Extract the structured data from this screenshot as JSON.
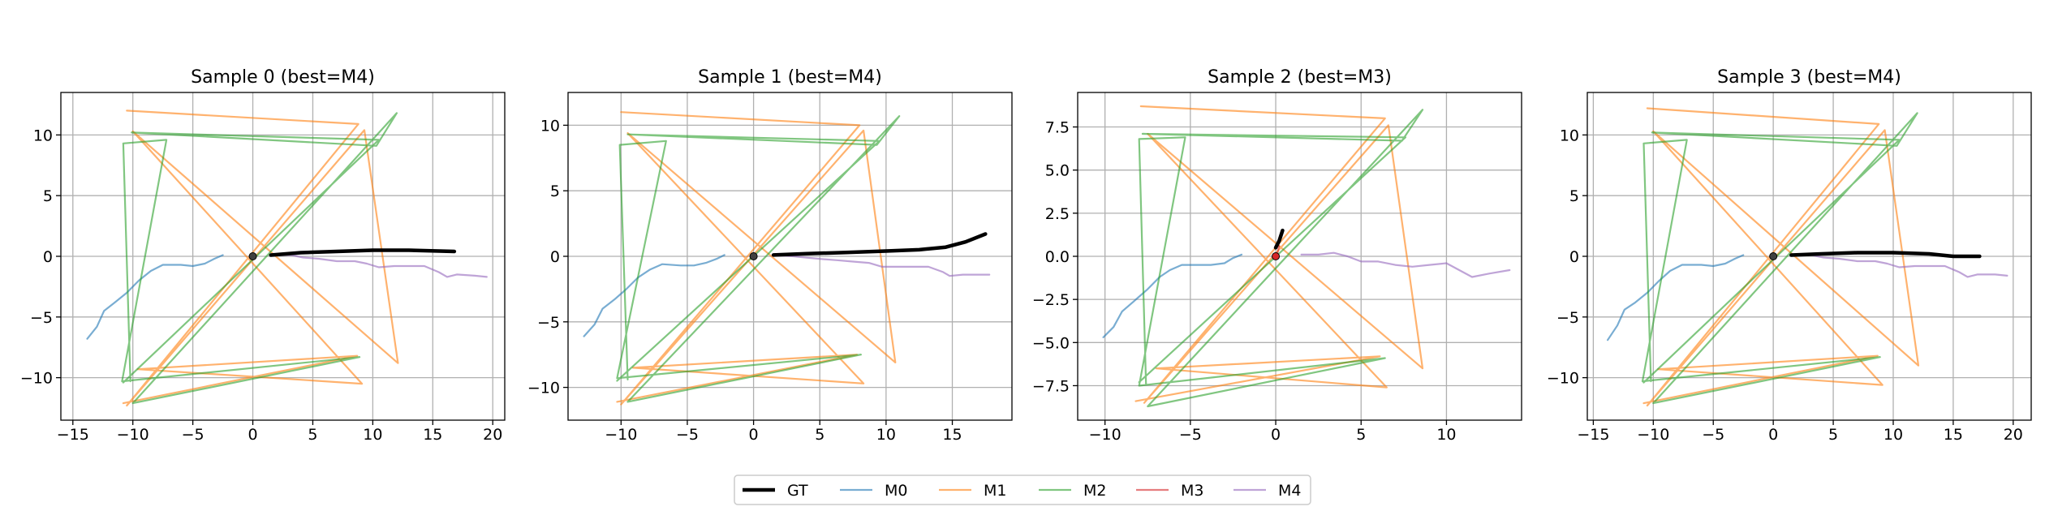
{
  "colors": {
    "GT": "#000000",
    "M0": "#1f77b4",
    "M1": "#ff7f0e",
    "M2": "#2ca02c",
    "M3": "#d62728",
    "M4": "#9467bd",
    "grid": "#b0b0b0"
  },
  "legend": {
    "placement": "bottom-center",
    "entries": [
      "GT",
      "M0",
      "M1",
      "M2",
      "M3",
      "M4"
    ]
  },
  "chart_data": [
    {
      "type": "line",
      "title": "Sample 0 (best=M4)",
      "xlim": [
        -16,
        21
      ],
      "ylim": [
        -13.5,
        13.5
      ],
      "xticks": [
        -15,
        -10,
        -5,
        0,
        5,
        10,
        15,
        20
      ],
      "yticks": [
        -10,
        -5,
        0,
        5,
        10
      ],
      "grid": true,
      "series": [
        {
          "name": "GT",
          "points": [
            [
              1.5,
              0.1
            ],
            [
              4,
              0.3
            ],
            [
              7,
              0.4
            ],
            [
              10,
              0.5
            ],
            [
              13,
              0.5
            ],
            [
              16.8,
              0.4
            ]
          ]
        },
        {
          "name": "M0",
          "points": [
            [
              -13.8,
              -6.8
            ],
            [
              -13,
              -5.8
            ],
            [
              -12.4,
              -4.5
            ],
            [
              -11.5,
              -3.8
            ],
            [
              -10.5,
              -3
            ],
            [
              -9.5,
              -2
            ],
            [
              -8.5,
              -1.2
            ],
            [
              -7.5,
              -0.7
            ],
            [
              -6,
              -0.7
            ],
            [
              -5,
              -0.8
            ],
            [
              -4,
              -0.6
            ],
            [
              -3.2,
              -0.2
            ],
            [
              -2.5,
              0.1
            ]
          ]
        },
        {
          "name": "M1",
          "points": [
            [
              -10.5,
              12
            ],
            [
              8.8,
              10.9
            ],
            [
              -10.5,
              -12.3
            ],
            [
              9.3,
              10.4
            ],
            [
              12.1,
              -8.8
            ],
            [
              -10,
              10.3
            ],
            [
              9.1,
              -10.5
            ],
            [
              -9.6,
              -9.3
            ],
            [
              8.7,
              -8.2
            ],
            [
              -10.8,
              -12.1
            ]
          ]
        },
        {
          "name": "M2",
          "points": [
            [
              -10.8,
              -10.4
            ],
            [
              10.5,
              9.6
            ],
            [
              -10.1,
              10.2
            ],
            [
              10.3,
              9.1
            ],
            [
              12,
              11.8
            ],
            [
              -10,
              -12.1
            ],
            [
              8.9,
              -8.3
            ],
            [
              -10.9,
              -10.3
            ],
            [
              -7.2,
              9.6
            ],
            [
              -10.8,
              9.3
            ],
            [
              -10.2,
              -10.3
            ]
          ]
        },
        {
          "name": "M3",
          "points": []
        },
        {
          "name": "M4",
          "points": [
            [
              1.5,
              0.1
            ],
            [
              3.2,
              0.1
            ],
            [
              4.2,
              -0.1
            ],
            [
              5.5,
              -0.2
            ],
            [
              7,
              -0.4
            ],
            [
              8.5,
              -0.4
            ],
            [
              9.5,
              -0.6
            ],
            [
              10.5,
              -0.9
            ],
            [
              11.8,
              -0.8
            ],
            [
              13,
              -0.8
            ],
            [
              14.3,
              -0.8
            ],
            [
              15.5,
              -1.3
            ],
            [
              16.2,
              -1.7
            ],
            [
              17,
              -1.5
            ],
            [
              18.5,
              -1.6
            ],
            [
              19.5,
              -1.7
            ]
          ]
        }
      ]
    },
    {
      "type": "line",
      "title": "Sample 1 (best=M4)",
      "xlim": [
        -14,
        19.5
      ],
      "ylim": [
        -12.5,
        12.5
      ],
      "xticks": [
        -10,
        -5,
        0,
        5,
        10,
        15
      ],
      "yticks": [
        -10,
        -5,
        0,
        5,
        10
      ],
      "grid": true,
      "series": [
        {
          "name": "GT",
          "points": [
            [
              1.5,
              0.1
            ],
            [
              4,
              0.2
            ],
            [
              7,
              0.3
            ],
            [
              10,
              0.4
            ],
            [
              12.5,
              0.5
            ],
            [
              14.5,
              0.7
            ],
            [
              16,
              1.1
            ],
            [
              17.5,
              1.7
            ]
          ]
        },
        {
          "name": "M0",
          "points": [
            [
              -12.8,
              -6.1
            ],
            [
              -12,
              -5.2
            ],
            [
              -11.4,
              -4
            ],
            [
              -10.5,
              -3.3
            ],
            [
              -9.6,
              -2.5
            ],
            [
              -8.7,
              -1.6
            ],
            [
              -7.8,
              -1
            ],
            [
              -6.9,
              -0.6
            ],
            [
              -5.5,
              -0.7
            ],
            [
              -4.5,
              -0.7
            ],
            [
              -3.6,
              -0.5
            ],
            [
              -2.8,
              -0.2
            ],
            [
              -2.2,
              0.1
            ]
          ]
        },
        {
          "name": "M1",
          "points": [
            [
              -10,
              11
            ],
            [
              8,
              10
            ],
            [
              -10,
              -11.3
            ],
            [
              8.3,
              9.6
            ],
            [
              10.7,
              -8.1
            ],
            [
              -9.5,
              9.4
            ],
            [
              8.3,
              -9.7
            ],
            [
              -9.1,
              -8.5
            ],
            [
              7.8,
              -7.5
            ],
            [
              -10.3,
              -11.1
            ]
          ]
        },
        {
          "name": "M2",
          "points": [
            [
              -10.3,
              -9.5
            ],
            [
              9.5,
              8.8
            ],
            [
              -9.5,
              9.3
            ],
            [
              9.3,
              8.5
            ],
            [
              11,
              10.7
            ],
            [
              -9.5,
              -11.1
            ],
            [
              8.1,
              -7.5
            ],
            [
              -10.3,
              -9.3
            ],
            [
              -6.6,
              8.8
            ],
            [
              -10.1,
              8.5
            ],
            [
              -9.5,
              -9.4
            ]
          ]
        },
        {
          "name": "M3",
          "points": []
        },
        {
          "name": "M4",
          "points": [
            [
              1.5,
              0.1
            ],
            [
              3,
              0
            ],
            [
              4,
              -0.1
            ],
            [
              5,
              -0.2
            ],
            [
              6.3,
              -0.3
            ],
            [
              7.5,
              -0.4
            ],
            [
              8.7,
              -0.5
            ],
            [
              9.7,
              -0.8
            ],
            [
              10.8,
              -0.8
            ],
            [
              12,
              -0.8
            ],
            [
              13.2,
              -0.8
            ],
            [
              14.3,
              -1.2
            ],
            [
              14.8,
              -1.5
            ],
            [
              15.8,
              -1.4
            ],
            [
              17,
              -1.4
            ],
            [
              17.8,
              -1.4
            ]
          ]
        }
      ]
    },
    {
      "type": "line",
      "title": "Sample 2 (best=M3)",
      "xlim": [
        -11.6,
        14.4
      ],
      "ylim": [
        -9.5,
        9.5
      ],
      "xticks": [
        -10,
        -5,
        0,
        5,
        10
      ],
      "yticks": [
        -7.5,
        -5.0,
        -2.5,
        0.0,
        2.5,
        5.0,
        7.5
      ],
      "grid": true,
      "series": [
        {
          "name": "GT",
          "points": [
            [
              0,
              0.5
            ],
            [
              0.2,
              0.9
            ],
            [
              0.3,
              1.2
            ],
            [
              0.4,
              1.5
            ]
          ]
        },
        {
          "name": "M0",
          "points": [
            [
              -10.1,
              -4.7
            ],
            [
              -9.5,
              -4.1
            ],
            [
              -9,
              -3.2
            ],
            [
              -8.3,
              -2.6
            ],
            [
              -7.5,
              -1.9
            ],
            [
              -6.8,
              -1.2
            ],
            [
              -6.2,
              -0.8
            ],
            [
              -5.5,
              -0.5
            ],
            [
              -4.5,
              -0.5
            ],
            [
              -3.8,
              -0.5
            ],
            [
              -3,
              -0.4
            ],
            [
              -2.5,
              -0.1
            ],
            [
              -2,
              0.1
            ]
          ]
        },
        {
          "name": "M1",
          "points": [
            [
              -7.9,
              8.7
            ],
            [
              6.4,
              8
            ],
            [
              -7.7,
              -8.5
            ],
            [
              6.6,
              7.6
            ],
            [
              8.6,
              -6.5
            ],
            [
              -7.5,
              7.1
            ],
            [
              6.5,
              -7.6
            ],
            [
              -7,
              -6.5
            ],
            [
              6.1,
              -5.8
            ],
            [
              -8.2,
              -8.4
            ]
          ]
        },
        {
          "name": "M2",
          "points": [
            [
              -8,
              -7.3
            ],
            [
              7.6,
              6.9
            ],
            [
              -7.8,
              7.1
            ],
            [
              7.4,
              6.7
            ],
            [
              8.6,
              8.5
            ],
            [
              -7.5,
              -8.7
            ],
            [
              6.4,
              -5.9
            ],
            [
              -8,
              -7.5
            ],
            [
              -5.3,
              6.9
            ],
            [
              -8,
              6.8
            ],
            [
              -7.6,
              -7.4
            ]
          ]
        },
        {
          "name": "M3",
          "points": [
            [
              0,
              0
            ],
            [
              0.1,
              0.2
            ],
            [
              0.15,
              0.4
            ],
            [
              0.2,
              0.6
            ]
          ]
        },
        {
          "name": "M4",
          "points": [
            [
              1.5,
              0.1
            ],
            [
              2.5,
              0.1
            ],
            [
              3.4,
              0.2
            ],
            [
              4.2,
              0
            ],
            [
              5,
              -0.3
            ],
            [
              6,
              -0.3
            ],
            [
              7,
              -0.5
            ],
            [
              8,
              -0.6
            ],
            [
              9,
              -0.5
            ],
            [
              10,
              -0.4
            ],
            [
              11.5,
              -1.2
            ],
            [
              12.5,
              -1
            ],
            [
              13.7,
              -0.8
            ]
          ]
        }
      ]
    },
    {
      "type": "line",
      "title": "Sample 3 (best=M4)",
      "xlim": [
        -15.5,
        21.5
      ],
      "ylim": [
        -13.5,
        13.5
      ],
      "xticks": [
        -15,
        -10,
        -5,
        0,
        5,
        10,
        15,
        20
      ],
      "yticks": [
        -10,
        -5,
        0,
        5,
        10
      ],
      "grid": true,
      "series": [
        {
          "name": "GT",
          "points": [
            [
              1.5,
              0.1
            ],
            [
              4,
              0.2
            ],
            [
              7,
              0.3
            ],
            [
              10,
              0.3
            ],
            [
              13,
              0.2
            ],
            [
              15,
              0
            ],
            [
              17.2,
              0
            ]
          ]
        },
        {
          "name": "M0",
          "points": [
            [
              -13.8,
              -6.9
            ],
            [
              -13,
              -5.7
            ],
            [
              -12.4,
              -4.4
            ],
            [
              -11.5,
              -3.8
            ],
            [
              -10.5,
              -3
            ],
            [
              -9.5,
              -2
            ],
            [
              -8.6,
              -1.2
            ],
            [
              -7.6,
              -0.7
            ],
            [
              -6,
              -0.7
            ],
            [
              -5,
              -0.8
            ],
            [
              -4,
              -0.6
            ],
            [
              -3.2,
              -0.2
            ],
            [
              -2.5,
              0.1
            ]
          ]
        },
        {
          "name": "M1",
          "points": [
            [
              -10.5,
              12.2
            ],
            [
              8.8,
              10.9
            ],
            [
              -10.5,
              -12.3
            ],
            [
              9.3,
              10.4
            ],
            [
              12.1,
              -9
            ],
            [
              -10,
              10.3
            ],
            [
              9.1,
              -10.6
            ],
            [
              -9.6,
              -9.3
            ],
            [
              8.7,
              -8.2
            ],
            [
              -10.8,
              -12.1
            ]
          ]
        },
        {
          "name": "M2",
          "points": [
            [
              -10.8,
              -10.4
            ],
            [
              10.5,
              9.6
            ],
            [
              -10.1,
              10.2
            ],
            [
              10.3,
              9.1
            ],
            [
              12,
              11.8
            ],
            [
              -10,
              -12.1
            ],
            [
              8.9,
              -8.3
            ],
            [
              -10.9,
              -10.3
            ],
            [
              -7.2,
              9.6
            ],
            [
              -10.8,
              9.3
            ],
            [
              -10.2,
              -10.3
            ]
          ]
        },
        {
          "name": "M3",
          "points": []
        },
        {
          "name": "M4",
          "points": [
            [
              1.5,
              0.1
            ],
            [
              3.2,
              0.1
            ],
            [
              4.2,
              -0.1
            ],
            [
              5.5,
              -0.2
            ],
            [
              7,
              -0.4
            ],
            [
              8.5,
              -0.4
            ],
            [
              9.5,
              -0.6
            ],
            [
              10.5,
              -0.9
            ],
            [
              11.8,
              -0.8
            ],
            [
              13,
              -0.8
            ],
            [
              14.3,
              -0.8
            ],
            [
              15.5,
              -1.3
            ],
            [
              16.2,
              -1.7
            ],
            [
              17,
              -1.5
            ],
            [
              18.5,
              -1.5
            ],
            [
              19.5,
              -1.6
            ]
          ]
        }
      ]
    }
  ]
}
